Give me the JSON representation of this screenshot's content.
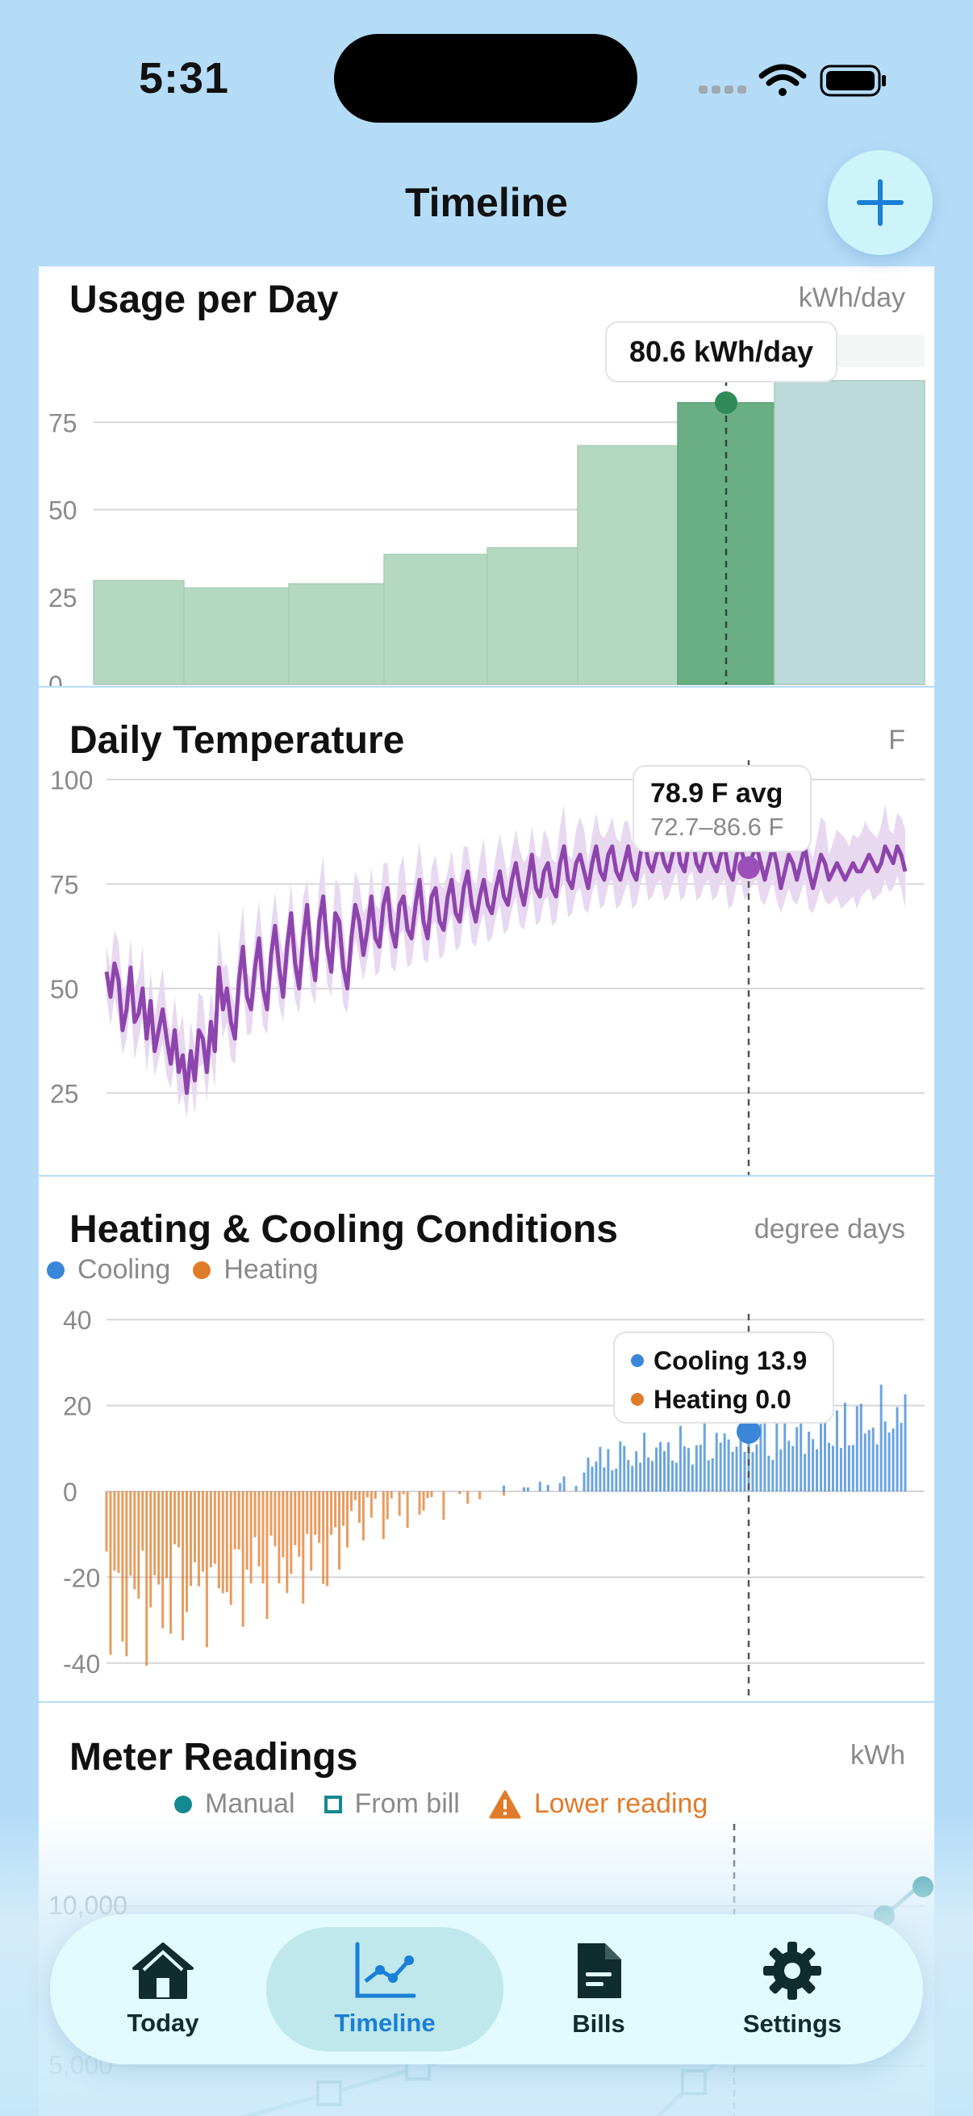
{
  "status_bar": {
    "time": "5:31"
  },
  "nav": {
    "title": "Timeline"
  },
  "usage": {
    "title": "Usage per Day",
    "unit": "kWh/day",
    "tooltip": "80.6 kWh/day",
    "bar_color": "#b5d8c2",
    "selected_color": "#6aaf84",
    "chart_data": {
      "type": "bar",
      "y_ticks": [
        0,
        25,
        50,
        75
      ],
      "ylim": [
        0,
        100
      ],
      "values": [
        29.7,
        27.6,
        28.8,
        37.2,
        39.1,
        68.3,
        80.6,
        86.9
      ],
      "selected_index": 6
    }
  },
  "temperature": {
    "title": "Daily Temperature",
    "unit": "F",
    "tooltip_avg": "78.9 F avg",
    "tooltip_range": "72.7–86.6 F",
    "line_color": "#8e44ad",
    "chart_data": {
      "type": "line",
      "y_ticks": [
        25,
        50,
        75,
        100
      ],
      "ylim": [
        10,
        105
      ],
      "selected_index": 160,
      "avg": [
        54,
        48,
        56,
        52,
        40,
        45,
        55,
        42,
        44,
        50,
        38,
        47,
        35,
        40,
        45,
        38,
        32,
        40,
        30,
        34,
        25,
        35,
        28,
        40,
        38,
        30,
        42,
        35,
        55,
        45,
        50,
        42,
        38,
        52,
        60,
        48,
        45,
        55,
        62,
        50,
        45,
        58,
        65,
        55,
        48,
        60,
        68,
        56,
        50,
        62,
        70,
        58,
        52,
        66,
        72,
        60,
        54,
        68,
        66,
        55,
        50,
        62,
        70,
        66,
        58,
        64,
        72,
        62,
        60,
        70,
        74,
        64,
        60,
        70,
        72,
        64,
        62,
        70,
        76,
        66,
        62,
        72,
        74,
        66,
        64,
        72,
        76,
        68,
        66,
        74,
        78,
        70,
        66,
        72,
        76,
        70,
        68,
        74,
        78,
        72,
        70,
        76,
        80,
        74,
        70,
        76,
        82,
        74,
        72,
        78,
        80,
        74,
        72,
        80,
        84,
        76,
        74,
        80,
        82,
        78,
        74,
        80,
        84,
        78,
        76,
        82,
        84,
        78,
        76,
        80,
        84,
        78,
        76,
        82,
        86,
        80,
        78,
        82,
        84,
        80,
        78,
        82,
        86,
        80,
        78,
        84,
        86,
        80,
        78,
        82,
        84,
        80,
        78,
        82,
        84,
        78,
        76,
        82,
        84,
        80,
        79,
        82,
        84,
        80,
        76,
        80,
        84,
        80,
        74,
        78,
        82,
        80,
        76,
        80,
        84,
        78,
        74,
        78,
        82,
        80,
        76,
        78,
        80,
        78,
        76,
        78,
        80,
        78,
        78,
        80,
        82,
        80,
        78,
        80,
        84,
        82,
        80,
        84,
        82,
        78
      ],
      "low": [],
      "high": []
    }
  },
  "degree_days": {
    "title": "Heating & Cooling Conditions",
    "unit": "degree days",
    "legend": {
      "cooling": "Cooling",
      "heating": "Heating"
    },
    "cooling_color": "#3a86d8",
    "heating_color": "#e07b2a",
    "tooltip_cooling": "Cooling 13.9",
    "tooltip_heating": "Heating 0.0",
    "chart_data": {
      "type": "bar",
      "y_ticks": [
        40,
        20,
        0,
        -20,
        -40
      ],
      "ylim": [
        -47,
        47
      ],
      "selected_index": 160,
      "selected_value": 13.9
    }
  },
  "meter": {
    "title": "Meter Readings",
    "unit": "kWh",
    "legend": {
      "manual": "Manual",
      "from_bill": "From bill",
      "lower": "Lower reading"
    },
    "manual_color": "#14898f",
    "warning_color": "#e07b2a",
    "chart_data": {
      "type": "line",
      "y_ticks": [
        "10,000",
        "5,000"
      ]
    }
  },
  "tabs": [
    {
      "label": "Today",
      "icon": "house-icon"
    },
    {
      "label": "Timeline",
      "icon": "chart-line-icon"
    },
    {
      "label": "Bills",
      "icon": "document-icon"
    },
    {
      "label": "Settings",
      "icon": "gear-icon"
    }
  ]
}
